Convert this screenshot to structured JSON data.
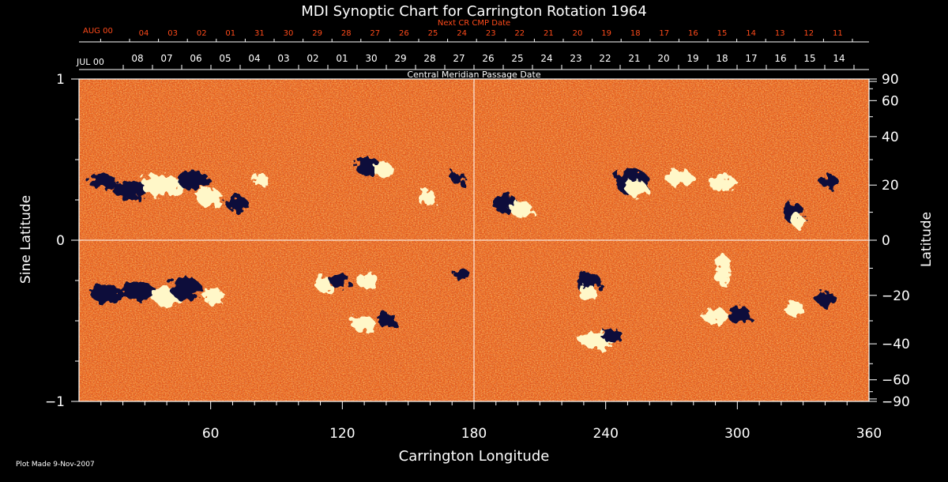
{
  "title": "MDI Synoptic Chart for Carrington Rotation 1964",
  "plot_made": "Plot Made  9-Nov-2007",
  "colors": {
    "background": "#000000",
    "axes": "#ffffff",
    "top_axis_labels": "#ff4a1a",
    "map_positive": "#fff7c8",
    "map_mid": "#e8601c",
    "map_negative": "#0a0a3a"
  },
  "chart_data": {
    "type": "heatmap",
    "xlabel": "Carrington Longitude",
    "ylabel_left": "Sine Latitude",
    "ylabel_right": "Latitude",
    "xlim": [
      0,
      360
    ],
    "ylim": [
      -1,
      1
    ],
    "x_ticks": [
      60,
      120,
      180,
      240,
      300,
      360
    ],
    "y_ticks_left": [
      {
        "value": 1,
        "label": "1"
      },
      {
        "value": 0,
        "label": "0"
      },
      {
        "value": -1,
        "label": "−1"
      }
    ],
    "y_ticks_right": [
      {
        "latitude": 90,
        "label": "90"
      },
      {
        "latitude": 60,
        "label": "60"
      },
      {
        "latitude": 40,
        "label": "40"
      },
      {
        "latitude": 20,
        "label": "20"
      },
      {
        "latitude": 0,
        "label": "0"
      },
      {
        "latitude": -20,
        "label": "−20"
      },
      {
        "latitude": -40,
        "label": "−40"
      },
      {
        "latitude": -60,
        "label": "−60"
      },
      {
        "latitude": -90,
        "label": "−90"
      }
    ],
    "top_axis_1": {
      "title": "Next CR CMP Date",
      "month_label": "AUG 00",
      "day_labels": [
        "04",
        "03",
        "02",
        "01",
        "31",
        "30",
        "29",
        "28",
        "27",
        "26",
        "25",
        "24",
        "23",
        "22",
        "21",
        "20",
        "19",
        "18",
        "17",
        "16",
        "15",
        "14",
        "13",
        "12",
        "11"
      ]
    },
    "top_axis_2": {
      "title": "Central Meridian Passage Date",
      "month_label": "JUL 00",
      "day_labels": [
        "08",
        "07",
        "06",
        "05",
        "04",
        "03",
        "02",
        "01",
        "30",
        "29",
        "28",
        "27",
        "26",
        "25",
        "24",
        "23",
        "22",
        "21",
        "20",
        "19",
        "18",
        "17",
        "16",
        "15",
        "14"
      ]
    },
    "colormap": "magnetic flux (dark = negative, bright = positive)",
    "grid": "center lines at longitude 180 and latitude 0"
  }
}
